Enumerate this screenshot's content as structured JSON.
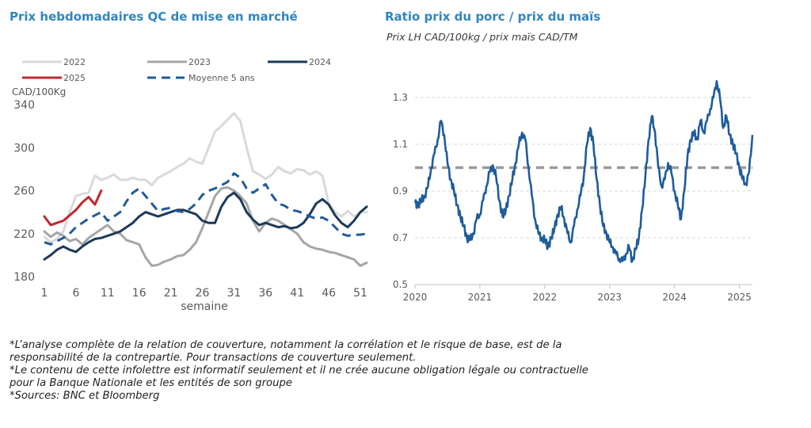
{
  "left_chart": {
    "title": "Prix hebdomadaires QC de mise en marché"
  },
  "right_chart": {
    "title": "Ratio prix du porc / prix du maïs",
    "subtitle": "Prix LH CAD/100kg / prix maïs CAD/TM"
  },
  "footnotes": [
    "*L’analyse complète de la relation de couverture, notamment la corrélation et le risque de base, est de la",
    "responsabilité de la contrepartie. Pour transactions de couverture seulement.",
    "*Le contenu de cette infolettre est informatif seulement et il ne crée aucune obligation légale ou contractuelle",
    "pour la Banque Nationale et les entités de son groupe",
    "*Sources: BNC et Bloomberg"
  ],
  "chart_data": [
    {
      "type": "line",
      "title": "Prix hebdomadaires QC de mise en marché",
      "unit_label": "CAD/100Kg",
      "xlabel": "semaine",
      "ylabel": "",
      "xlim": [
        1,
        52
      ],
      "ylim": [
        180,
        340
      ],
      "x_ticks": [
        1,
        6,
        11,
        16,
        21,
        26,
        31,
        36,
        41,
        46,
        51
      ],
      "y_ticks": [
        180,
        220,
        260,
        300,
        340
      ],
      "grid": false,
      "legend": "top",
      "series": [
        {
          "name": "2022",
          "color": "#d9d9d9",
          "dash": "solid",
          "x": [
            1,
            2,
            3,
            4,
            5,
            6,
            7,
            8,
            9,
            10,
            11,
            12,
            13,
            14,
            15,
            16,
            17,
            18,
            19,
            20,
            21,
            22,
            23,
            24,
            25,
            26,
            27,
            28,
            29,
            30,
            31,
            32,
            33,
            34,
            35,
            36,
            37,
            38,
            39,
            40,
            41,
            42,
            43,
            44,
            45,
            46,
            47,
            48,
            49,
            50,
            51,
            52
          ],
          "y": [
            217,
            212,
            215,
            222,
            240,
            255,
            257,
            258,
            274,
            270,
            272,
            275,
            270,
            270,
            272,
            270,
            270,
            265,
            272,
            275,
            278,
            282,
            285,
            290,
            287,
            285,
            300,
            315,
            320,
            326,
            332,
            325,
            300,
            278,
            275,
            271,
            275,
            282,
            278,
            276,
            280,
            279,
            275,
            278,
            274,
            248,
            240,
            236,
            241,
            236,
            240,
            240
          ]
        },
        {
          "name": "2023",
          "color": "#a6a6a6",
          "dash": "solid",
          "x": [
            1,
            2,
            3,
            4,
            5,
            6,
            7,
            8,
            9,
            10,
            11,
            12,
            13,
            14,
            15,
            16,
            17,
            18,
            19,
            20,
            21,
            22,
            23,
            24,
            25,
            26,
            27,
            28,
            29,
            30,
            31,
            32,
            33,
            34,
            35,
            36,
            37,
            38,
            39,
            40,
            41,
            42,
            43,
            44,
            45,
            46,
            47,
            48,
            49,
            50,
            51,
            52
          ],
          "y": [
            222,
            217,
            221,
            218,
            213,
            215,
            210,
            216,
            220,
            224,
            228,
            222,
            220,
            214,
            212,
            210,
            198,
            190,
            191,
            194,
            196,
            199,
            200,
            205,
            212,
            225,
            240,
            255,
            262,
            263,
            260,
            255,
            248,
            232,
            222,
            230,
            234,
            232,
            228,
            224,
            220,
            212,
            208,
            206,
            205,
            203,
            202,
            200,
            198,
            196,
            190,
            193
          ]
        },
        {
          "name": "2024",
          "color": "#1c3a5a",
          "dash": "solid",
          "x": [
            1,
            2,
            3,
            4,
            5,
            6,
            7,
            8,
            9,
            10,
            11,
            12,
            13,
            14,
            15,
            16,
            17,
            18,
            19,
            20,
            21,
            22,
            23,
            24,
            25,
            26,
            27,
            28,
            29,
            30,
            31,
            32,
            33,
            34,
            35,
            36,
            37,
            38,
            39,
            40,
            41,
            42,
            43,
            44,
            45,
            46,
            47,
            48,
            49,
            50,
            51,
            52
          ],
          "y": [
            196,
            200,
            205,
            208,
            205,
            203,
            208,
            212,
            215,
            216,
            218,
            220,
            222,
            226,
            230,
            236,
            240,
            238,
            236,
            238,
            240,
            242,
            242,
            240,
            238,
            232,
            230,
            230,
            245,
            254,
            258,
            252,
            240,
            233,
            228,
            230,
            228,
            226,
            227,
            225,
            226,
            230,
            238,
            248,
            252,
            247,
            237,
            230,
            226,
            232,
            240,
            245
          ]
        },
        {
          "name": "2025",
          "color": "#c0282d",
          "dash": "solid",
          "x": [
            1,
            2,
            3,
            4,
            5,
            6,
            7,
            8,
            9,
            10
          ],
          "y": [
            236,
            228,
            230,
            232,
            237,
            242,
            249,
            254,
            247,
            260
          ]
        },
        {
          "name": "Moyenne 5 ans",
          "color": "#1f5c99",
          "dash": "dashed",
          "x": [
            1,
            2,
            3,
            4,
            5,
            6,
            7,
            8,
            9,
            10,
            11,
            12,
            13,
            14,
            15,
            16,
            17,
            18,
            19,
            20,
            21,
            22,
            23,
            24,
            25,
            26,
            27,
            28,
            29,
            30,
            31,
            32,
            33,
            34,
            35,
            36,
            37,
            38,
            39,
            40,
            41,
            42,
            43,
            44,
            45,
            46,
            47,
            48,
            49,
            50,
            51,
            52
          ],
          "y": [
            212,
            210,
            213,
            216,
            220,
            226,
            230,
            234,
            237,
            240,
            232,
            236,
            240,
            250,
            258,
            262,
            255,
            248,
            241,
            243,
            244,
            241,
            240,
            243,
            248,
            256,
            260,
            262,
            265,
            268,
            276,
            272,
            262,
            258,
            262,
            266,
            256,
            248,
            246,
            242,
            241,
            239,
            236,
            234,
            235,
            232,
            226,
            220,
            218,
            219,
            219,
            220
          ]
        }
      ]
    },
    {
      "type": "line",
      "title": "Ratio prix du porc / prix du maïs",
      "subtitle": "Prix LH CAD/100kg / prix maïs CAD/TM",
      "xlabel": "",
      "ylabel": "",
      "xlim": [
        2020.0,
        2025.2
      ],
      "ylim": [
        0.5,
        1.3
      ],
      "x_ticks": [
        2020,
        2021,
        2022,
        2023,
        2024,
        2025
      ],
      "y_ticks": [
        0.5,
        0.7,
        0.9,
        1.1,
        1.3
      ],
      "grid": true,
      "legend": "none",
      "reference_line": {
        "y": 1.0,
        "color": "#9a9a9a",
        "dash": "dashed"
      },
      "series": [
        {
          "color": "#1f5c99",
          "x": [
            2020.0,
            2020.05,
            2020.1,
            2020.15,
            2020.2,
            2020.25,
            2020.3,
            2020.35,
            2020.4,
            2020.45,
            2020.5,
            2020.55,
            2020.6,
            2020.65,
            2020.7,
            2020.75,
            2020.8,
            2020.85,
            2020.9,
            2020.95,
            2021.0,
            2021.05,
            2021.1,
            2021.15,
            2021.2,
            2021.25,
            2021.3,
            2021.35,
            2021.4,
            2021.45,
            2021.5,
            2021.55,
            2021.6,
            2021.65,
            2021.7,
            2021.75,
            2021.8,
            2021.85,
            2021.9,
            2021.95,
            2022.0,
            2022.05,
            2022.1,
            2022.15,
            2022.2,
            2022.25,
            2022.3,
            2022.35,
            2022.4,
            2022.45,
            2022.5,
            2022.55,
            2022.6,
            2022.65,
            2022.7,
            2022.75,
            2022.8,
            2022.85,
            2022.9,
            2022.95,
            2023.0,
            2023.05,
            2023.1,
            2023.15,
            2023.2,
            2023.25,
            2023.3,
            2023.35,
            2023.4,
            2023.45,
            2023.5,
            2023.55,
            2023.6,
            2023.65,
            2023.7,
            2023.75,
            2023.8,
            2023.85,
            2023.9,
            2023.95,
            2024.0,
            2024.05,
            2024.1,
            2024.15,
            2024.2,
            2024.25,
            2024.3,
            2024.35,
            2024.4,
            2024.45,
            2024.5,
            2024.55,
            2024.6,
            2024.65,
            2024.7,
            2024.75,
            2024.8,
            2024.85,
            2024.9,
            2024.95,
            2025.0,
            2025.05,
            2025.1,
            2025.15,
            2025.2
          ],
          "y": [
            0.85,
            0.84,
            0.86,
            0.88,
            0.92,
            1.0,
            1.06,
            1.12,
            1.2,
            1.14,
            1.02,
            0.95,
            0.9,
            0.84,
            0.79,
            0.75,
            0.7,
            0.69,
            0.72,
            0.78,
            0.8,
            0.86,
            0.92,
            0.98,
            1.01,
            0.96,
            0.86,
            0.79,
            0.82,
            0.88,
            0.95,
            1.02,
            1.1,
            1.15,
            1.12,
            1.0,
            0.88,
            0.78,
            0.72,
            0.7,
            0.69,
            0.66,
            0.7,
            0.74,
            0.8,
            0.83,
            0.78,
            0.72,
            0.68,
            0.75,
            0.82,
            0.88,
            0.96,
            1.1,
            1.17,
            1.1,
            0.95,
            0.84,
            0.75,
            0.72,
            0.68,
            0.66,
            0.63,
            0.61,
            0.6,
            0.63,
            0.66,
            0.6,
            0.65,
            0.7,
            0.82,
            0.96,
            1.12,
            1.22,
            1.15,
            1.0,
            0.92,
            0.95,
            1.02,
            0.98,
            0.9,
            0.84,
            0.78,
            0.9,
            1.05,
            1.12,
            1.15,
            1.12,
            1.2,
            1.15,
            1.2,
            1.25,
            1.3,
            1.37,
            1.3,
            1.17,
            1.22,
            1.14,
            1.1,
            1.06,
            1.0,
            0.95,
            0.93,
            0.98,
            1.14
          ]
        }
      ]
    }
  ]
}
